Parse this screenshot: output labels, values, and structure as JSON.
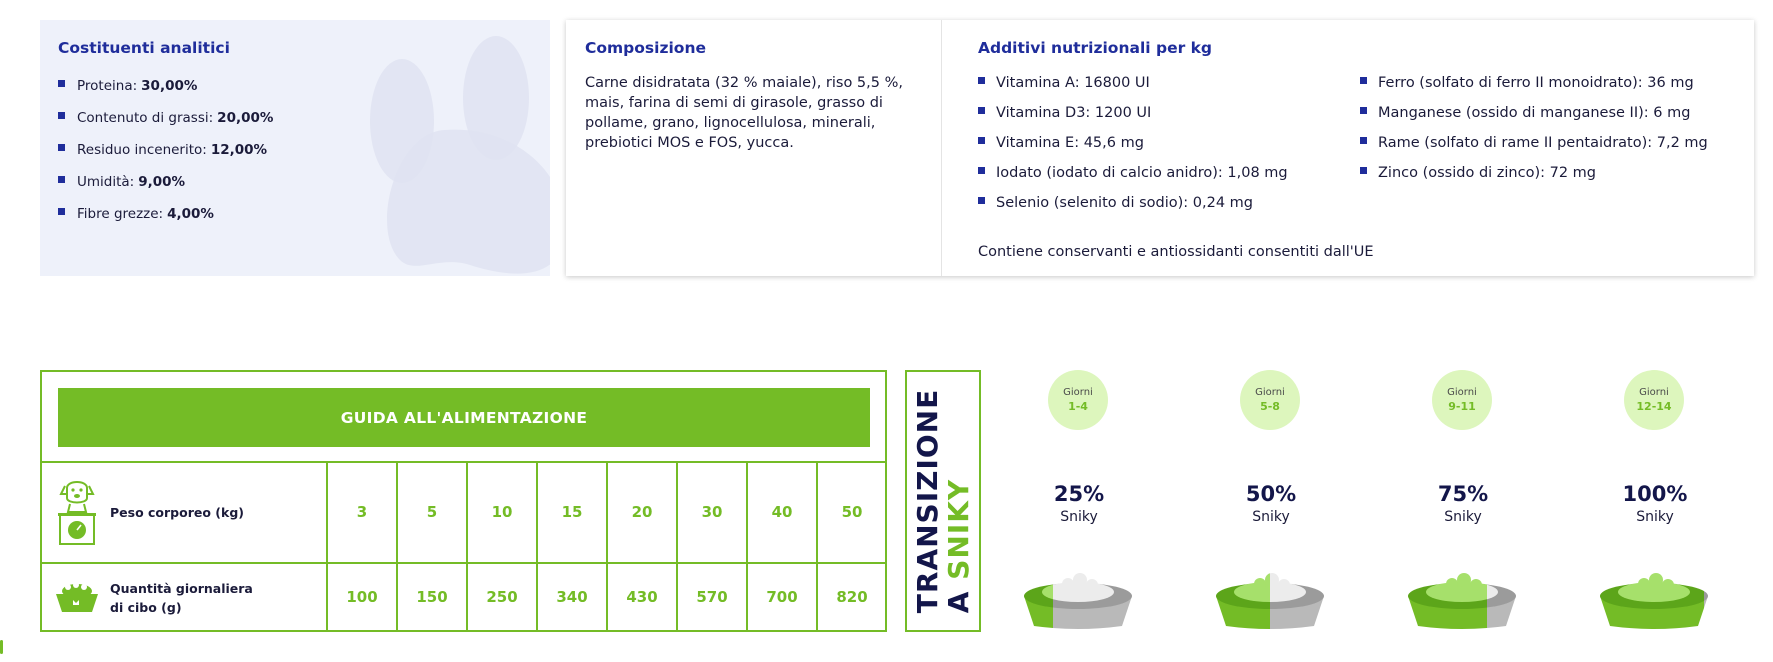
{
  "analitici": {
    "title": "Costituenti analitici",
    "items": [
      {
        "label": "Proteina:",
        "value": "30,00%"
      },
      {
        "label": "Contenuto di grassi:",
        "value": "20,00%"
      },
      {
        "label": "Residuo incenerito:",
        "value": "12,00%"
      },
      {
        "label": "Umidità:",
        "value": "9,00%"
      },
      {
        "label": "Fibre grezze:",
        "value": "4,00%"
      }
    ]
  },
  "composizione": {
    "title": "Composizione",
    "text": "Carne disidratata (32 % maiale), riso 5,5 %, mais, farina di semi di girasole, grasso di pollame, grano, lignocellulosa, minerali, prebiotici MOS e FOS, yucca."
  },
  "additivi": {
    "title": "Additivi nutrizionali per kg",
    "col1": [
      "Vitamina A: 16800 UI",
      "Vitamina D3: 1200 UI",
      "Vitamina E: 45,6 mg",
      "Iodato (iodato di calcio anidro): 1,08 mg",
      "Selenio (selenito di sodio): 0,24 mg"
    ],
    "col2": [
      "Ferro (solfato di ferro II monoidrato): 36 mg",
      "Manganese (ossido di manganese II): 6 mg",
      "Rame (solfato di rame II pentaidrato): 7,2 mg",
      "Zinco (ossido di zinco): 72 mg"
    ],
    "note": "Contiene conservanti e antiossidanti consentiti dall'UE"
  },
  "guida": {
    "title": "GUIDA ALL'ALIMENTAZIONE",
    "weight_label": "Peso corporeo (kg)",
    "qty_label_1": "Quantità giornaliera",
    "qty_label_2": "di cibo (g)",
    "weights": [
      "3",
      "5",
      "10",
      "15",
      "20",
      "30",
      "40",
      "50"
    ],
    "quantities": [
      "100",
      "150",
      "250",
      "340",
      "430",
      "570",
      "700",
      "820"
    ],
    "weight_icon": "dog-on-scale-icon",
    "food_icon": "food-bowl-icon"
  },
  "transizione": {
    "line1": "TRANSIZIONE",
    "line2a": "A ",
    "line2b": "SNIKY",
    "stages": [
      {
        "giorni": "Giorni",
        "days": "1-4",
        "pct": "25%",
        "brand": "Sniky",
        "fraction": 0.25
      },
      {
        "giorni": "Giorni",
        "days": "5-8",
        "pct": "50%",
        "brand": "Sniky",
        "fraction": 0.5
      },
      {
        "giorni": "Giorni",
        "days": "9-11",
        "pct": "75%",
        "brand": "Sniky",
        "fraction": 0.75
      },
      {
        "giorni": "Giorni",
        "days": "12-14",
        "pct": "100%",
        "brand": "Sniky",
        "fraction": 1.0
      }
    ]
  },
  "colors": {
    "green": "#74bc26",
    "navy": "#13164a",
    "blue_title": "#1f2d9b",
    "panel_bg": "#eef1fa",
    "circle_bg": "#ddf6bd"
  }
}
